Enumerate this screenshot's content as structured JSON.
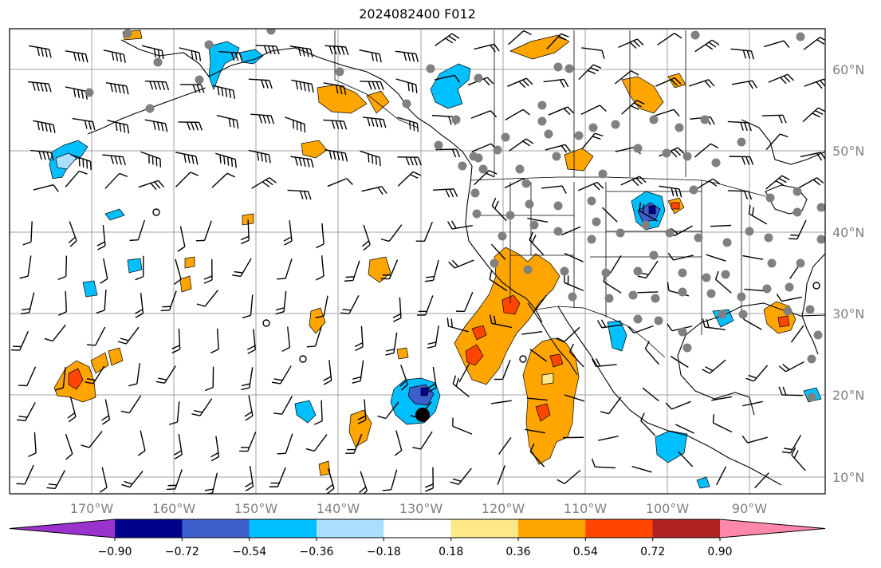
{
  "title": "2024082400 F012",
  "map": {
    "lon_labels": [
      "170°W",
      "160°W",
      "150°W",
      "140°W",
      "130°W",
      "120°W",
      "110°W",
      "100°W",
      "90°W"
    ],
    "lat_labels": [
      "60°N",
      "50°N",
      "40°N",
      "30°N",
      "20°N",
      "10°N"
    ],
    "gridline_color": "#a0a0a0",
    "label_color": "#808080"
  },
  "colorbar": {
    "ticks": [
      "−0.90",
      "−0.72",
      "−0.54",
      "−0.36",
      "−0.18",
      "0.18",
      "0.36",
      "0.54",
      "0.72",
      "0.90"
    ],
    "colors": [
      "#9933cc",
      "#00008b",
      "#3d5fcc",
      "#00bfff",
      "#aadfff",
      "#ffffff",
      "#ffe88a",
      "#ffa500",
      "#ff4500",
      "#b22222",
      "#ff88aa"
    ]
  },
  "fill_colors": {
    "light_blue": "#aadfff",
    "blue": "#00bfff",
    "medium_blue": "#3d5fcc",
    "dark_blue": "#00008b",
    "yellow": "#ffe88a",
    "orange": "#ffa500",
    "red_orange": "#ff4500",
    "dark_red": "#b22222"
  },
  "marker_colors": {
    "station": "#808080",
    "storm": "#000000"
  }
}
